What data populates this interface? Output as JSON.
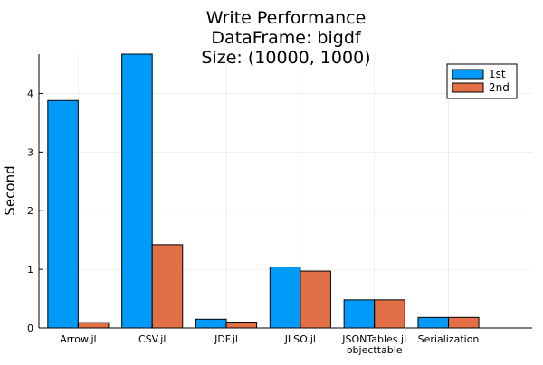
{
  "chart_data": {
    "type": "bar",
    "title": [
      "Write Performance",
      "DataFrame: bigdf",
      "Size: (10000, 1000)"
    ],
    "xlabel": "",
    "ylabel": "Second",
    "categories": [
      [
        "Arrow.jl"
      ],
      [
        "CSV.jl"
      ],
      [
        "JDF.jl"
      ],
      [
        "JLSO.jl"
      ],
      [
        "JSONTables.jl",
        "objecttable"
      ],
      [
        "Serialization"
      ]
    ],
    "series": [
      {
        "name": "1st",
        "color": "#009af9",
        "values": [
          3.88,
          4.67,
          0.15,
          1.04,
          0.48,
          0.18
        ]
      },
      {
        "name": "2nd",
        "color": "#e26f46",
        "values": [
          0.09,
          1.42,
          0.1,
          0.97,
          0.48,
          0.18
        ]
      }
    ],
    "ylim": [
      0,
      4.67
    ],
    "yticks": [
      0,
      1,
      2,
      3,
      4
    ],
    "grid": true,
    "legend_position": "top-right"
  }
}
